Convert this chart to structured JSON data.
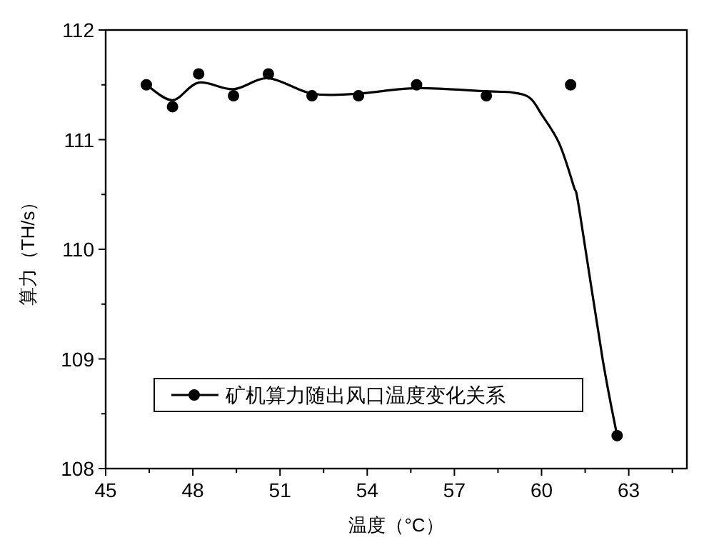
{
  "chart_data": {
    "type": "scatter",
    "xlabel": "温度（°C）",
    "ylabel": "算力（TH/s）",
    "xlim": [
      45,
      65
    ],
    "ylim": [
      108,
      112
    ],
    "xticks": [
      45,
      {
        "value": 46.5,
        "label": null
      },
      48,
      {
        "value": 49.5,
        "label": null
      },
      51,
      {
        "value": 52.5,
        "label": null
      },
      54,
      {
        "value": 55.5,
        "label": null
      },
      57,
      {
        "value": 58.5,
        "label": null
      },
      60,
      {
        "value": 61.5,
        "label": null
      },
      63,
      {
        "value": 64.5,
        "label": null
      }
    ],
    "yticks": [
      108,
      {
        "value": 108.5,
        "label": null
      },
      109,
      {
        "value": 109.5,
        "label": null
      },
      110,
      {
        "value": 110.5,
        "label": null
      },
      111,
      {
        "value": 111.5,
        "label": null
      },
      112
    ],
    "grid": false,
    "legend": "bottom left",
    "series": [
      {
        "name": "矿机算力随出风口温度变化关系",
        "marker": "circle",
        "color": "#000000",
        "x": [
          46.4,
          47.3,
          48.2,
          49.4,
          50.6,
          52.1,
          53.7,
          55.7,
          58.1,
          61.0,
          62.6
        ],
        "values": [
          111.5,
          111.3,
          111.6,
          111.4,
          111.6,
          111.4,
          111.4,
          111.5,
          111.4,
          111.5,
          108.3
        ]
      },
      {
        "type": "line",
        "line_style": "solid",
        "color": "#000000",
        "x": [
          46.4,
          47.3,
          48.2,
          49.4,
          50.6,
          52.1,
          53.7,
          55.7,
          58.1,
          59.0,
          59.6,
          60.0,
          60.6,
          61.1,
          61.3,
          62.1,
          62.6
        ],
        "values": [
          111.5,
          111.36,
          111.52,
          111.46,
          111.56,
          111.42,
          111.42,
          111.47,
          111.44,
          111.43,
          111.38,
          111.23,
          110.97,
          110.58,
          110.36,
          109.0,
          108.3
        ]
      }
    ]
  }
}
